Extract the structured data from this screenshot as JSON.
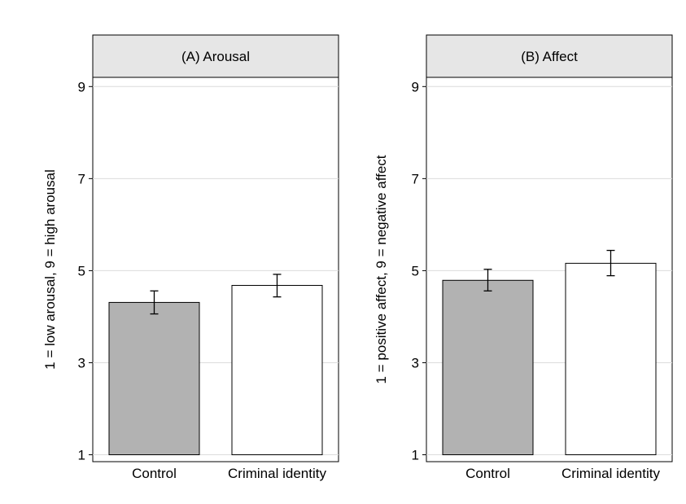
{
  "chart_data": [
    {
      "type": "bar",
      "title": "(A) Arousal",
      "ylabel": "1 = low arousal, 9 = high arousal",
      "xlabel": "",
      "categories": [
        "Control",
        "Criminal identity"
      ],
      "values": [
        4.31,
        4.68
      ],
      "error_low": [
        4.06,
        4.43
      ],
      "error_high": [
        4.56,
        4.92
      ],
      "ylim": [
        0.85,
        9.2
      ],
      "yticks": [
        1,
        3,
        5,
        7,
        9
      ],
      "grid": true,
      "bar_colors": [
        "#b2b2b2",
        "#ffffff"
      ]
    },
    {
      "type": "bar",
      "title": "(B) Affect",
      "ylabel": "1 = positive affect, 9 = negative affect",
      "xlabel": "",
      "categories": [
        "Control",
        "Criminal identity"
      ],
      "values": [
        4.79,
        5.16
      ],
      "error_low": [
        4.56,
        4.89
      ],
      "error_high": [
        5.03,
        5.44
      ],
      "ylim": [
        0.85,
        9.2
      ],
      "yticks": [
        1,
        3,
        5,
        7,
        9
      ],
      "grid": true,
      "bar_colors": [
        "#b2b2b2",
        "#ffffff"
      ]
    }
  ],
  "colors": {
    "header_fill": "#e6e6e6",
    "gridline": "#dcdcdc",
    "axis": "#000000"
  }
}
